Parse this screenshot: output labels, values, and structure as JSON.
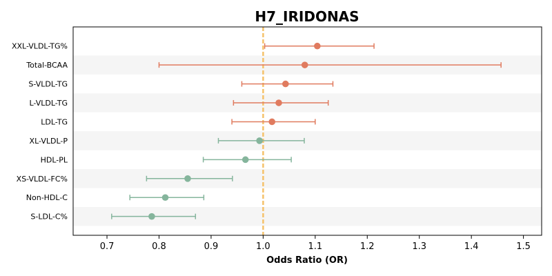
{
  "chart_data": {
    "type": "forest",
    "title": "H7_IRIDONAS",
    "xlabel": "Odds Ratio (OR)",
    "xlim": [
      0.635,
      1.535
    ],
    "xticks": [
      0.7,
      0.8,
      0.9,
      1.0,
      1.1,
      1.2,
      1.3,
      1.4,
      1.5
    ],
    "xtick_labels": [
      "0.7",
      "0.8",
      "0.9",
      "1.0",
      "1.1",
      "1.2",
      "1.3",
      "1.4",
      "1.5"
    ],
    "reference_line": 1.0,
    "reference_color": "#f5c26b",
    "colors": {
      "increase": "#e07b5f",
      "decrease": "#85b59c",
      "band": "#f5f5f5"
    },
    "rows": [
      {
        "label": "XXL-VLDL-TG%",
        "or": 1.104,
        "lower": 1.003,
        "upper": 1.213,
        "direction": "increase"
      },
      {
        "label": "Total-BCAA",
        "or": 1.08,
        "lower": 0.8,
        "upper": 1.457,
        "direction": "increase"
      },
      {
        "label": "S-VLDL-TG",
        "or": 1.043,
        "lower": 0.959,
        "upper": 1.134,
        "direction": "increase"
      },
      {
        "label": "L-VLDL-TG",
        "or": 1.03,
        "lower": 0.943,
        "upper": 1.125,
        "direction": "increase"
      },
      {
        "label": "LDL-TG",
        "or": 1.017,
        "lower": 0.94,
        "upper": 1.1,
        "direction": "increase"
      },
      {
        "label": "XL-VLDL-P",
        "or": 0.993,
        "lower": 0.914,
        "upper": 1.079,
        "direction": "decrease"
      },
      {
        "label": "HDL-PL",
        "or": 0.966,
        "lower": 0.885,
        "upper": 1.054,
        "direction": "decrease"
      },
      {
        "label": "XS-VLDL-FC%",
        "or": 0.855,
        "lower": 0.776,
        "upper": 0.941,
        "direction": "decrease"
      },
      {
        "label": "Non-HDL-C",
        "or": 0.812,
        "lower": 0.744,
        "upper": 0.886,
        "direction": "decrease"
      },
      {
        "label": "S-LDL-C%",
        "or": 0.786,
        "lower": 0.709,
        "upper": 0.87,
        "direction": "decrease"
      }
    ]
  }
}
